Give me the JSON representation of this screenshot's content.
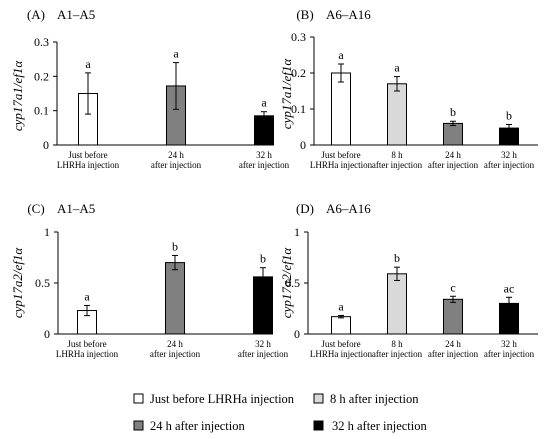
{
  "legend": [
    {
      "label": "Just before LHRHa injection",
      "color": "#ffffff"
    },
    {
      "label": "8 h after injection",
      "color": "#d9d9d9"
    },
    {
      "label": "24 h after injection",
      "color": "#808080"
    },
    {
      "label": "32 h after injection",
      "color": "#000000"
    }
  ],
  "chart_data": [
    {
      "type": "bar",
      "panel": "(A)",
      "title": "A1–A5",
      "ylabel": "cyp17a1/ef1α",
      "ylim": [
        0,
        0.3
      ],
      "yticks": [
        "0",
        "0.1",
        "0.2",
        "0.3"
      ],
      "categories": [
        [
          "Just before",
          "LHRHa injection"
        ],
        [
          "24 h",
          "after injection"
        ],
        [
          "32 h",
          "after injection"
        ]
      ],
      "values": [
        0.15,
        0.172,
        0.085
      ],
      "errors": [
        0.06,
        0.068,
        0.012
      ],
      "letters": [
        "a",
        "a",
        "a"
      ],
      "colors": [
        "#ffffff",
        "#808080",
        "#000000"
      ]
    },
    {
      "type": "bar",
      "panel": "(B)",
      "title": "A6–A16",
      "ylabel": "cyp17a1/ef1α",
      "ylim": [
        0,
        0.3
      ],
      "yticks": [
        "0",
        "0.1",
        "0.2",
        "0.3"
      ],
      "categories": [
        [
          "Just before",
          "LHRHa injection"
        ],
        [
          "8  h",
          "after injection"
        ],
        [
          "24 h",
          "after injection"
        ],
        [
          "32 h",
          "after injection"
        ]
      ],
      "values": [
        0.2,
        0.17,
        0.06,
        0.047
      ],
      "errors": [
        0.025,
        0.02,
        0.006,
        0.01
      ],
      "letters": [
        "a",
        "a",
        "b",
        "b"
      ],
      "colors": [
        "#ffffff",
        "#d9d9d9",
        "#808080",
        "#000000"
      ]
    },
    {
      "type": "bar",
      "panel": "(C)",
      "title": "A1–A5",
      "ylabel": "cyp17a2/ef1α",
      "ylim": [
        0,
        1
      ],
      "yticks": [
        "0",
        "0.5",
        "1"
      ],
      "categories": [
        [
          "Just before",
          "LHRHa injection"
        ],
        [
          "24 h",
          "after injection"
        ],
        [
          "32 h",
          "after injection"
        ]
      ],
      "values": [
        0.23,
        0.7,
        0.56
      ],
      "errors": [
        0.05,
        0.07,
        0.09
      ],
      "letters": [
        "a",
        "b",
        "b"
      ],
      "colors": [
        "#ffffff",
        "#808080",
        "#000000"
      ]
    },
    {
      "type": "bar",
      "panel": "(D)",
      "title": "A6–A16",
      "ylabel": "cyp17a2/ef1α",
      "ylim": [
        0,
        1
      ],
      "yticks": [
        "0",
        "0.5",
        "1"
      ],
      "categories": [
        [
          "Just before",
          "LHRHa injection"
        ],
        [
          "8  h",
          "after injection"
        ],
        [
          "24 h",
          "after injection"
        ],
        [
          "32 h",
          "after injection"
        ]
      ],
      "values": [
        0.17,
        0.59,
        0.34,
        0.3
      ],
      "errors": [
        0.012,
        0.065,
        0.03,
        0.06
      ],
      "letters": [
        "a",
        "b",
        "c",
        "ac"
      ],
      "colors": [
        "#ffffff",
        "#d9d9d9",
        "#808080",
        "#000000"
      ]
    }
  ]
}
